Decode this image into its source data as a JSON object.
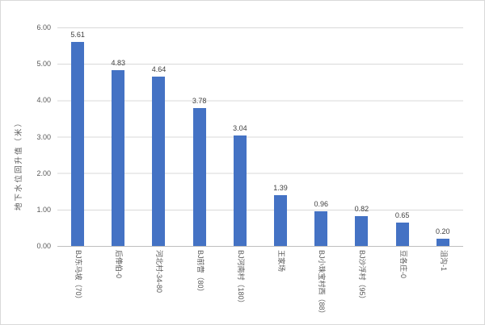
{
  "chart_data": {
    "type": "bar",
    "title": "",
    "xlabel": "",
    "ylabel": "地下水位回升值（米）",
    "ylim": [
      0,
      6
    ],
    "ytick_step": 1.0,
    "yticks": [
      "6.00",
      "5.00",
      "4.00",
      "3.00",
      "2.00",
      "1.00",
      "0.00"
    ],
    "categories": [
      "BJ东马坡（70）",
      "后俸伯-0",
      "河北村-34-80",
      "BJ前营（80）",
      "BJ河南村（180）",
      "王家场",
      "BJ小珠宝村西（88）",
      "BJ沙浮村（95）",
      "豆各庄-0",
      "沮沟-1"
    ],
    "values": [
      5.61,
      4.83,
      4.64,
      3.78,
      3.04,
      1.39,
      0.96,
      0.82,
      0.65,
      0.2
    ],
    "value_labels": [
      "5.61",
      "4.83",
      "4.64",
      "3.78",
      "3.04",
      "1.39",
      "0.96",
      "0.82",
      "0.65",
      "0.20"
    ],
    "grid": true,
    "legend": false,
    "bar_color": "#4472C4",
    "gridline_color": "#D9D9D9",
    "axis_line_color": "#BFBFBF",
    "axis_text_color": "#595959",
    "data_label_color": "#404040",
    "background_color": "#FFFFFF"
  }
}
